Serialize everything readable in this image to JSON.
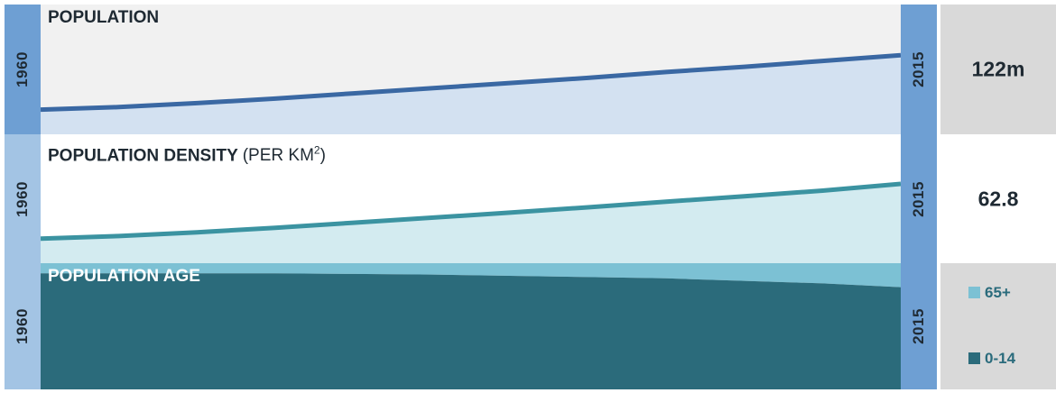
{
  "panels": {
    "population": {
      "title": "POPULATION",
      "start_year": "1960",
      "end_year": "2015",
      "value": "122m"
    },
    "density": {
      "title": "POPULATION DENSITY",
      "unit_prefix": "(PER KM",
      "unit_sup": "2",
      "unit_suffix": ")",
      "start_year": "1960",
      "end_year": "2015",
      "value": "62.8"
    },
    "age": {
      "title": "POPULATION AGE",
      "start_year": "1960",
      "end_year": "2015",
      "legend": [
        {
          "label": "65+",
          "color": "#7cc1d4"
        },
        {
          "label": "0-14",
          "color": "#2b6b7b"
        }
      ]
    }
  },
  "colors": {
    "population_line": "#3a68a3",
    "population_fill": "#d3e1f1",
    "density_line": "#3b93a1",
    "density_fill": "#d3ebf0",
    "age_65": "#7cc1d4",
    "age_0_14": "#2b6b7b"
  },
  "chart_data": [
    {
      "type": "area",
      "title": "POPULATION",
      "x": [
        1960,
        1965,
        1970,
        1975,
        1980,
        1985,
        1990,
        1995,
        2000,
        2005,
        2010,
        2015
      ],
      "series": [
        {
          "values": [
            38,
            42,
            48,
            55,
            63,
            71,
            79,
            87,
            96,
            104,
            113,
            122
          ]
        }
      ],
      "xlim": [
        1960,
        2015
      ],
      "ylim": [
        0,
        200
      ]
    },
    {
      "type": "area",
      "title": "POPULATION DENSITY (PER KM2)",
      "x": [
        1960,
        1965,
        1970,
        1975,
        1980,
        1985,
        1990,
        1995,
        2000,
        2005,
        2010,
        2015
      ],
      "series": [
        {
          "values": [
            19.5,
            21.5,
            24.5,
            28.0,
            32.0,
            36.0,
            40.0,
            44.2,
            48.7,
            52.9,
            57.4,
            62.8
          ]
        }
      ],
      "xlim": [
        1960,
        2015
      ],
      "ylim": [
        0,
        102
      ]
    },
    {
      "type": "area",
      "title": "POPULATION AGE",
      "x": [
        1960,
        1965,
        1970,
        1975,
        1980,
        1985,
        1990,
        1995,
        2000,
        2005,
        2010,
        2015
      ],
      "series": [
        {
          "name": "0-14",
          "values": [
            92,
            92,
            92,
            92,
            91.5,
            91,
            90,
            89,
            88,
            86,
            84,
            81
          ]
        },
        {
          "name": "65+",
          "values": [
            8,
            8,
            8,
            8,
            8.5,
            9,
            10,
            11,
            12,
            14,
            16,
            19
          ]
        }
      ],
      "stacked": true,
      "xlim": [
        1960,
        2015
      ],
      "ylim": [
        0,
        100
      ]
    }
  ]
}
